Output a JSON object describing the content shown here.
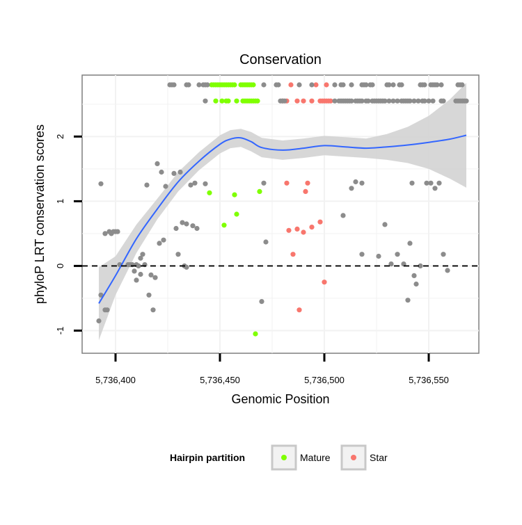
{
  "chart_data": {
    "type": "scatter",
    "title": "Conservation",
    "xlabel": "Genomic Position",
    "ylabel": "phyloP LRT conservation scores",
    "xlim": [
      5736384,
      5736574
    ],
    "ylim": [
      -1.35,
      2.95
    ],
    "x_ticks": [
      5736400,
      5736450,
      5736500,
      5736550
    ],
    "x_tick_labels": [
      "5,736,400",
      "5,736,450",
      "5,736,500",
      "5,736,550"
    ],
    "y_ticks": [
      -1,
      0,
      1,
      2
    ],
    "y_tick_labels": [
      "-1",
      "0",
      "1",
      "2"
    ],
    "reference_line": {
      "y": 0,
      "style": "dashed"
    },
    "grid": true,
    "legend": {
      "title": "Hairpin partition",
      "position": "bottom",
      "entries": [
        {
          "name": "Mature",
          "color": "#7FFF00"
        },
        {
          "name": "Star",
          "color": "#F8766D"
        }
      ]
    },
    "colors": {
      "other": "#8c8c8c",
      "Mature": "#7FFF00",
      "Star": "#F8766D",
      "smooth": "#3366FF",
      "band": "#d3d3d3"
    },
    "series": [
      {
        "name": "Mature",
        "points": [
          [
            5736446,
            2.8
          ],
          [
            5736447,
            2.8
          ],
          [
            5736448,
            2.8
          ],
          [
            5736449,
            2.8
          ],
          [
            5736450,
            2.8
          ],
          [
            5736451,
            2.8
          ],
          [
            5736452,
            2.8
          ],
          [
            5736453,
            2.8
          ],
          [
            5736454,
            2.8
          ],
          [
            5736455,
            2.8
          ],
          [
            5736456,
            2.8
          ],
          [
            5736457,
            2.8
          ],
          [
            5736460,
            2.8
          ],
          [
            5736461,
            2.8
          ],
          [
            5736462,
            2.8
          ],
          [
            5736463,
            2.8
          ],
          [
            5736464,
            2.8
          ],
          [
            5736465,
            2.8
          ],
          [
            5736466,
            2.8
          ],
          [
            5736448,
            2.55
          ],
          [
            5736451,
            2.55
          ],
          [
            5736453,
            2.55
          ],
          [
            5736454,
            2.55
          ],
          [
            5736458,
            2.55
          ],
          [
            5736461,
            2.55
          ],
          [
            5736462,
            2.55
          ],
          [
            5736463,
            2.55
          ],
          [
            5736464,
            2.55
          ],
          [
            5736465,
            2.55
          ],
          [
            5736466,
            2.55
          ],
          [
            5736467,
            2.55
          ],
          [
            5736468,
            2.55
          ],
          [
            5736445,
            1.13
          ],
          [
            5736457,
            1.1
          ],
          [
            5736469,
            1.15
          ],
          [
            5736458,
            0.8
          ],
          [
            5736452,
            0.63
          ],
          [
            5736467,
            -1.05
          ]
        ]
      },
      {
        "name": "Star",
        "points": [
          [
            5736484,
            2.8
          ],
          [
            5736496,
            2.8
          ],
          [
            5736501,
            2.8
          ],
          [
            5736480,
            2.55
          ],
          [
            5736482,
            2.55
          ],
          [
            5736487,
            2.55
          ],
          [
            5736490,
            2.55
          ],
          [
            5736494,
            2.55
          ],
          [
            5736498,
            2.55
          ],
          [
            5736499,
            2.55
          ],
          [
            5736500,
            2.55
          ],
          [
            5736501,
            2.55
          ],
          [
            5736502,
            2.55
          ],
          [
            5736503,
            2.55
          ],
          [
            5736482,
            1.28
          ],
          [
            5736492,
            1.28
          ],
          [
            5736491,
            1.15
          ],
          [
            5736498,
            0.68
          ],
          [
            5736494,
            0.6
          ],
          [
            5736483,
            0.55
          ],
          [
            5736487,
            0.57
          ],
          [
            5736490,
            0.52
          ],
          [
            5736485,
            0.18
          ],
          [
            5736500,
            -0.25
          ],
          [
            5736488,
            -0.68
          ]
        ]
      },
      {
        "name": "",
        "points": [
          [
            5736426,
            2.8
          ],
          [
            5736427,
            2.8
          ],
          [
            5736428,
            2.8
          ],
          [
            5736434,
            2.8
          ],
          [
            5736435,
            2.8
          ],
          [
            5736440,
            2.8
          ],
          [
            5736442,
            2.8
          ],
          [
            5736443,
            2.8
          ],
          [
            5736444,
            2.8
          ],
          [
            5736471,
            2.8
          ],
          [
            5736477,
            2.8
          ],
          [
            5736478,
            2.8
          ],
          [
            5736488,
            2.8
          ],
          [
            5736494,
            2.8
          ],
          [
            5736505,
            2.8
          ],
          [
            5736508,
            2.8
          ],
          [
            5736509,
            2.8
          ],
          [
            5736513,
            2.8
          ],
          [
            5736518,
            2.8
          ],
          [
            5736519,
            2.8
          ],
          [
            5736520,
            2.8
          ],
          [
            5736522,
            2.8
          ],
          [
            5736523,
            2.8
          ],
          [
            5736530,
            2.8
          ],
          [
            5736531,
            2.8
          ],
          [
            5736533,
            2.8
          ],
          [
            5736536,
            2.8
          ],
          [
            5736537,
            2.8
          ],
          [
            5736546,
            2.8
          ],
          [
            5736547,
            2.8
          ],
          [
            5736548,
            2.8
          ],
          [
            5736551,
            2.8
          ],
          [
            5736552,
            2.8
          ],
          [
            5736553,
            2.8
          ],
          [
            5736554,
            2.8
          ],
          [
            5736556,
            2.8
          ],
          [
            5736564,
            2.8
          ],
          [
            5736565,
            2.8
          ],
          [
            5736566,
            2.8
          ],
          [
            5736443,
            2.55
          ],
          [
            5736479,
            2.55
          ],
          [
            5736480,
            2.55
          ],
          [
            5736481,
            2.55
          ],
          [
            5736505,
            2.55
          ],
          [
            5736507,
            2.55
          ],
          [
            5736508,
            2.55
          ],
          [
            5736509,
            2.55
          ],
          [
            5736510,
            2.55
          ],
          [
            5736511,
            2.55
          ],
          [
            5736512,
            2.55
          ],
          [
            5736513,
            2.55
          ],
          [
            5736515,
            2.55
          ],
          [
            5736516,
            2.55
          ],
          [
            5736517,
            2.55
          ],
          [
            5736518,
            2.55
          ],
          [
            5736520,
            2.55
          ],
          [
            5736521,
            2.55
          ],
          [
            5736523,
            2.55
          ],
          [
            5736524,
            2.55
          ],
          [
            5736525,
            2.55
          ],
          [
            5736526,
            2.55
          ],
          [
            5736527,
            2.55
          ],
          [
            5736528,
            2.55
          ],
          [
            5736529,
            2.55
          ],
          [
            5736531,
            2.55
          ],
          [
            5736533,
            2.55
          ],
          [
            5736535,
            2.55
          ],
          [
            5736537,
            2.55
          ],
          [
            5736538,
            2.55
          ],
          [
            5736539,
            2.55
          ],
          [
            5736540,
            2.55
          ],
          [
            5736541,
            2.55
          ],
          [
            5736543,
            2.55
          ],
          [
            5736545,
            2.55
          ],
          [
            5736547,
            2.55
          ],
          [
            5736548,
            2.55
          ],
          [
            5736550,
            2.55
          ],
          [
            5736552,
            2.55
          ],
          [
            5736556,
            2.55
          ],
          [
            5736557,
            2.55
          ],
          [
            5736563,
            2.55
          ],
          [
            5736564,
            2.55
          ],
          [
            5736565,
            2.55
          ],
          [
            5736566,
            2.55
          ],
          [
            5736567,
            2.55
          ],
          [
            5736568,
            2.55
          ],
          [
            5736393,
            1.27
          ],
          [
            5736392,
            -0.85
          ],
          [
            5736393,
            -0.45
          ],
          [
            5736395,
            -0.68
          ],
          [
            5736396,
            -0.68
          ],
          [
            5736395,
            0.5
          ],
          [
            5736397,
            0.53
          ],
          [
            5736398,
            0.5
          ],
          [
            5736399,
            0.53
          ],
          [
            5736400,
            0.53
          ],
          [
            5736401,
            0.53
          ],
          [
            5736402,
            0.02
          ],
          [
            5736406,
            0.02
          ],
          [
            5736407,
            0.02
          ],
          [
            5736408,
            0.02
          ],
          [
            5736409,
            -0.08
          ],
          [
            5736410,
            -0.22
          ],
          [
            5736410,
            0.02
          ],
          [
            5736411,
            0.0
          ],
          [
            5736412,
            -0.13
          ],
          [
            5736412,
            0.12
          ],
          [
            5736413,
            0.18
          ],
          [
            5736414,
            0.02
          ],
          [
            5736415,
            1.25
          ],
          [
            5736416,
            -0.45
          ],
          [
            5736417,
            -0.14
          ],
          [
            5736418,
            -0.68
          ],
          [
            5736419,
            -0.18
          ],
          [
            5736420,
            1.58
          ],
          [
            5736421,
            0.35
          ],
          [
            5736422,
            1.45
          ],
          [
            5736423,
            0.4
          ],
          [
            5736424,
            1.23
          ],
          [
            5736428,
            1.43
          ],
          [
            5736429,
            0.58
          ],
          [
            5736430,
            0.18
          ],
          [
            5736431,
            1.45
          ],
          [
            5736432,
            0.67
          ],
          [
            5736433,
            0.0
          ],
          [
            5736434,
            0.65
          ],
          [
            5736434,
            -0.02
          ],
          [
            5736436,
            1.25
          ],
          [
            5736437,
            0.62
          ],
          [
            5736438,
            1.28
          ],
          [
            5736439,
            0.58
          ],
          [
            5736443,
            1.27
          ],
          [
            5736470,
            -0.55
          ],
          [
            5736471,
            1.28
          ],
          [
            5736472,
            0.37
          ],
          [
            5736509,
            0.78
          ],
          [
            5736513,
            1.2
          ],
          [
            5736515,
            1.3
          ],
          [
            5736518,
            0.18
          ],
          [
            5736518,
            1.28
          ],
          [
            5736526,
            0.15
          ],
          [
            5736529,
            0.64
          ],
          [
            5736532,
            0.03
          ],
          [
            5736535,
            0.18
          ],
          [
            5736538,
            0.03
          ],
          [
            5736540,
            -0.53
          ],
          [
            5736541,
            0.35
          ],
          [
            5736542,
            1.28
          ],
          [
            5736543,
            -0.15
          ],
          [
            5736544,
            -0.28
          ],
          [
            5736546,
            0.0
          ],
          [
            5736549,
            1.28
          ],
          [
            5736551,
            1.28
          ],
          [
            5736553,
            1.2
          ],
          [
            5736555,
            1.28
          ],
          [
            5736557,
            0.18
          ],
          [
            5736559,
            -0.07
          ]
        ]
      }
    ],
    "smooth": {
      "x": [
        5736392,
        5736400,
        5736410,
        5736420,
        5736430,
        5736440,
        5736450,
        5736455,
        5736460,
        5736465,
        5736470,
        5736480,
        5736490,
        5736500,
        5736510,
        5736520,
        5736530,
        5736540,
        5736550,
        5736560,
        5736568
      ],
      "y": [
        -0.58,
        -0.15,
        0.42,
        0.88,
        1.3,
        1.62,
        1.88,
        1.96,
        1.98,
        1.92,
        1.83,
        1.79,
        1.82,
        1.86,
        1.84,
        1.82,
        1.84,
        1.87,
        1.91,
        1.96,
        2.02
      ],
      "lower": [
        -1.15,
        -0.45,
        0.2,
        0.72,
        1.15,
        1.48,
        1.74,
        1.82,
        1.84,
        1.77,
        1.68,
        1.64,
        1.67,
        1.71,
        1.69,
        1.67,
        1.64,
        1.59,
        1.5,
        1.35,
        1.21
      ],
      "upper": [
        -0.02,
        0.15,
        0.64,
        1.04,
        1.45,
        1.76,
        2.02,
        2.1,
        2.12,
        2.07,
        1.98,
        1.94,
        1.97,
        2.01,
        1.99,
        1.97,
        2.04,
        2.15,
        2.32,
        2.57,
        2.83
      ]
    }
  }
}
